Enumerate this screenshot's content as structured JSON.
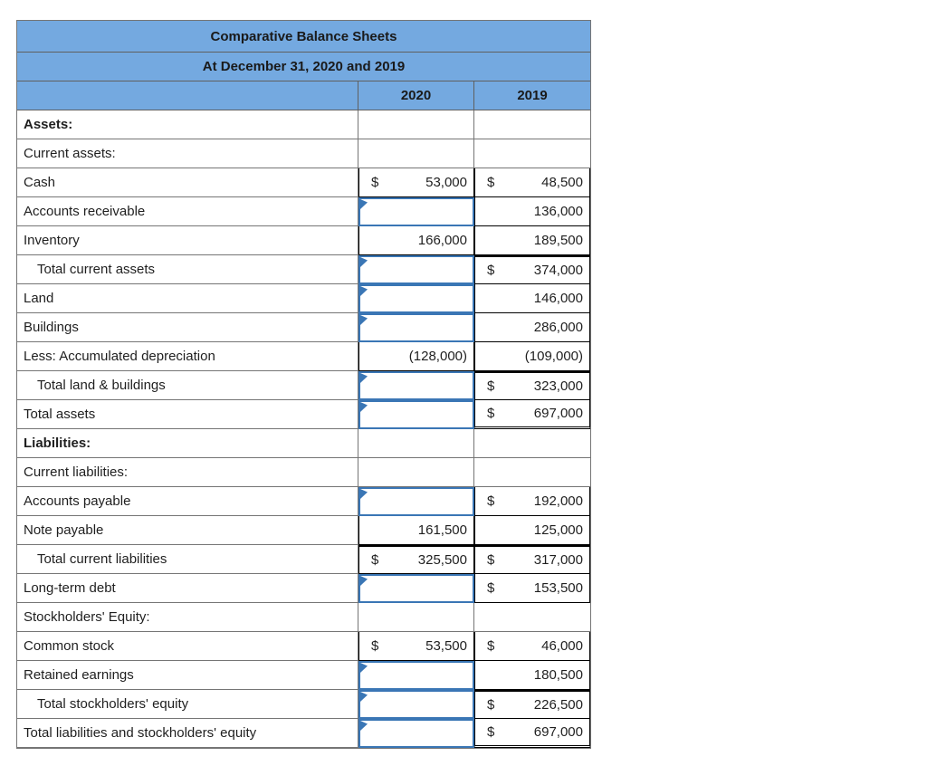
{
  "colors": {
    "header_bg": "#74A9E0",
    "grid_line": "#757575",
    "box_line": "#000000",
    "input_border": "#3a76b5",
    "text": "#1f1f1f"
  },
  "table": {
    "title": "Comparative Balance Sheets",
    "subtitle": "At December 31, 2020 and 2019",
    "col_headers": [
      "2020",
      "2019"
    ],
    "rows": [
      {
        "label": "Assets:",
        "bold": true,
        "cells": [
          {
            "type": "empty"
          },
          {
            "type": "empty"
          }
        ]
      },
      {
        "label": "Current assets:",
        "cells": [
          {
            "type": "empty"
          },
          {
            "type": "empty"
          }
        ]
      },
      {
        "label": "Cash",
        "cells": [
          {
            "type": "value",
            "dollar": "$",
            "value": "53,000"
          },
          {
            "type": "value",
            "dollar": "$",
            "value": "48,500"
          }
        ]
      },
      {
        "label": "Accounts receivable",
        "cells": [
          {
            "type": "input",
            "value": ""
          },
          {
            "type": "value",
            "value": "136,000"
          }
        ]
      },
      {
        "label": "Inventory",
        "cells": [
          {
            "type": "value",
            "value": "166,000"
          },
          {
            "type": "value",
            "value": "189,500"
          }
        ]
      },
      {
        "label": "Total current assets",
        "indent": true,
        "cells": [
          {
            "type": "input",
            "value": ""
          },
          {
            "type": "value",
            "dollar": "$",
            "value": "374,000",
            "total": true
          }
        ]
      },
      {
        "label": "Land",
        "cells": [
          {
            "type": "input",
            "value": ""
          },
          {
            "type": "value",
            "value": "146,000"
          }
        ]
      },
      {
        "label": "Buildings",
        "cells": [
          {
            "type": "input",
            "value": ""
          },
          {
            "type": "value",
            "value": "286,000"
          }
        ]
      },
      {
        "label": "Less: Accumulated depreciation",
        "cells": [
          {
            "type": "value",
            "value": "(128,000)"
          },
          {
            "type": "value",
            "value": "(109,000)"
          }
        ]
      },
      {
        "label": "Total land & buildings",
        "indent": true,
        "cells": [
          {
            "type": "input",
            "value": ""
          },
          {
            "type": "value",
            "dollar": "$",
            "value": "323,000",
            "total": true
          }
        ]
      },
      {
        "label": "Total assets",
        "cells": [
          {
            "type": "input",
            "value": ""
          },
          {
            "type": "value",
            "dollar": "$",
            "value": "697,000",
            "double_underline": true
          }
        ]
      },
      {
        "label": "Liabilities:",
        "bold": true,
        "cells": [
          {
            "type": "empty"
          },
          {
            "type": "empty"
          }
        ]
      },
      {
        "label": "Current liabilities:",
        "cells": [
          {
            "type": "empty"
          },
          {
            "type": "empty"
          }
        ]
      },
      {
        "label": "Accounts payable",
        "cells": [
          {
            "type": "input",
            "value": ""
          },
          {
            "type": "value",
            "dollar": "$",
            "value": "192,000"
          }
        ]
      },
      {
        "label": "Note payable",
        "cells": [
          {
            "type": "value",
            "value": "161,500"
          },
          {
            "type": "value",
            "value": "125,000"
          }
        ]
      },
      {
        "label": "Total current liabilities",
        "indent": true,
        "cells": [
          {
            "type": "value",
            "dollar": "$",
            "value": "325,500",
            "total": true
          },
          {
            "type": "value",
            "dollar": "$",
            "value": "317,000",
            "total": true
          }
        ]
      },
      {
        "label": "Long-term debt",
        "cells": [
          {
            "type": "input",
            "value": ""
          },
          {
            "type": "value",
            "dollar": "$",
            "value": "153,500"
          }
        ]
      },
      {
        "label": "Stockholders' Equity:",
        "cells": [
          {
            "type": "empty"
          },
          {
            "type": "empty"
          }
        ]
      },
      {
        "label": "Common stock",
        "cells": [
          {
            "type": "value",
            "dollar": "$",
            "value": "53,500"
          },
          {
            "type": "value",
            "dollar": "$",
            "value": "46,000"
          }
        ]
      },
      {
        "label": "Retained earnings",
        "cells": [
          {
            "type": "input",
            "value": ""
          },
          {
            "type": "value",
            "value": "180,500"
          }
        ]
      },
      {
        "label": "Total stockholders' equity",
        "indent": true,
        "cells": [
          {
            "type": "input",
            "value": ""
          },
          {
            "type": "value",
            "dollar": "$",
            "value": "226,500",
            "total": true
          }
        ]
      },
      {
        "label": "Total liabilities and stockholders' equity",
        "cells": [
          {
            "type": "input",
            "value": ""
          },
          {
            "type": "value",
            "dollar": "$",
            "value": "697,000",
            "double_underline": true
          }
        ]
      }
    ]
  }
}
